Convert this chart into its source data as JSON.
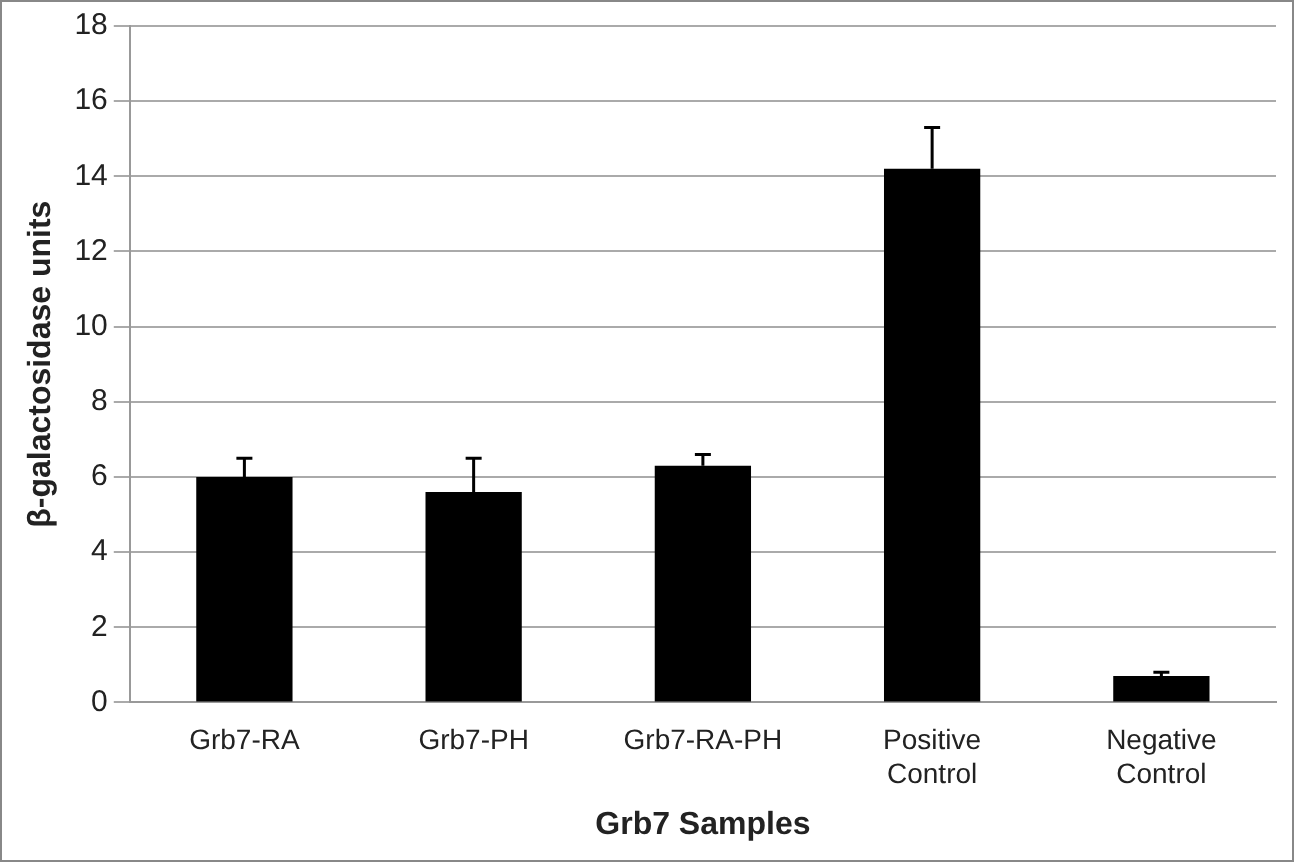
{
  "chart_data": {
    "type": "bar",
    "xlabel": "Grb7 Samples",
    "ylabel": "β-galactosidase units",
    "categories": [
      "Grb7-RA",
      "Grb7-PH",
      "Grb7-RA-PH",
      "Positive Control",
      "Negative Control"
    ],
    "values": [
      6.0,
      5.6,
      6.3,
      14.2,
      0.7
    ],
    "errors": [
      [
        6.0,
        6.5
      ],
      [
        5.6,
        6.5
      ],
      [
        6.3,
        6.6
      ],
      [
        14.2,
        15.3
      ],
      [
        0.7,
        0.8
      ]
    ],
    "color": "#000000",
    "ylim": [
      0,
      18
    ],
    "yticks": [
      0,
      2,
      4,
      6,
      8,
      10,
      12,
      14,
      16,
      18
    ],
    "grid": "y",
    "legend": false
  }
}
